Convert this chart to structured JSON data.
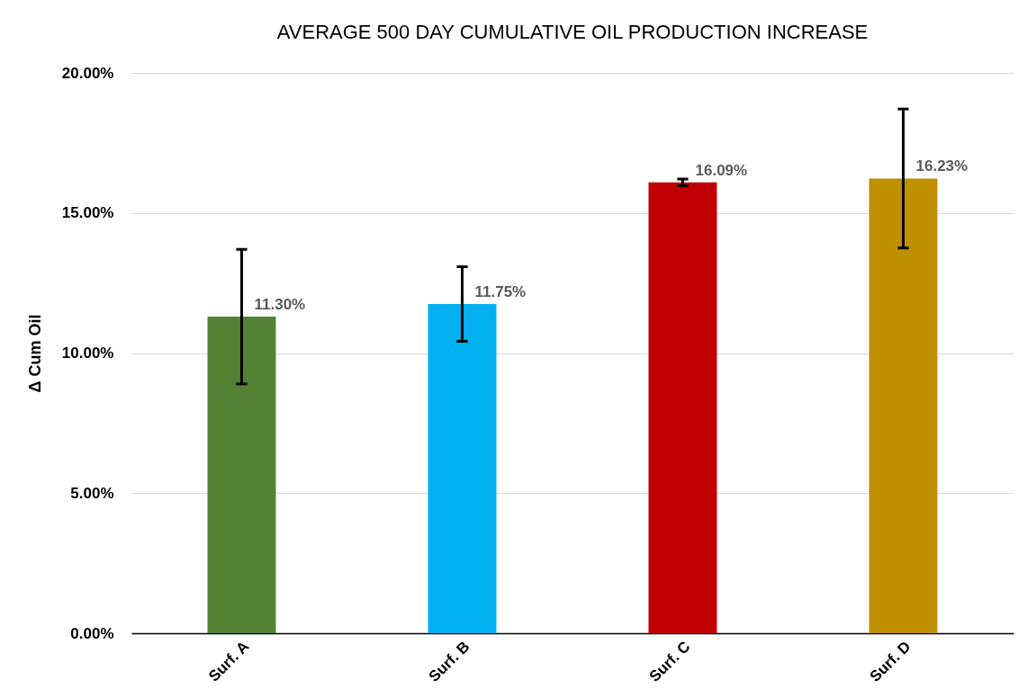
{
  "chart_data": {
    "type": "bar",
    "title": "AVERAGE 500 DAY CUMULATIVE OIL PRODUCTION INCREASE",
    "ylabel": "Δ Cum Oil",
    "categories": [
      "Surf. A",
      "Surf. B",
      "Surf. C",
      "Surf. D"
    ],
    "values": [
      11.3,
      11.75,
      16.09,
      16.23
    ],
    "colors": [
      "#548235",
      "#00b0f0",
      "#c00000",
      "#bf9000"
    ],
    "errors": [
      2.4,
      1.33,
      0.12,
      2.48
    ],
    "value_labels": [
      "11.30%",
      "11.75%",
      "16.09%",
      "16.23%"
    ],
    "ylim": [
      0,
      20
    ],
    "yticks": [
      {
        "value": 0,
        "label": "0.00%"
      },
      {
        "value": 5,
        "label": "5.00%"
      },
      {
        "value": 10,
        "label": "10.00%"
      },
      {
        "value": 15,
        "label": "15.00%"
      },
      {
        "value": 20,
        "label": "20.00%"
      }
    ],
    "grid": "y"
  }
}
